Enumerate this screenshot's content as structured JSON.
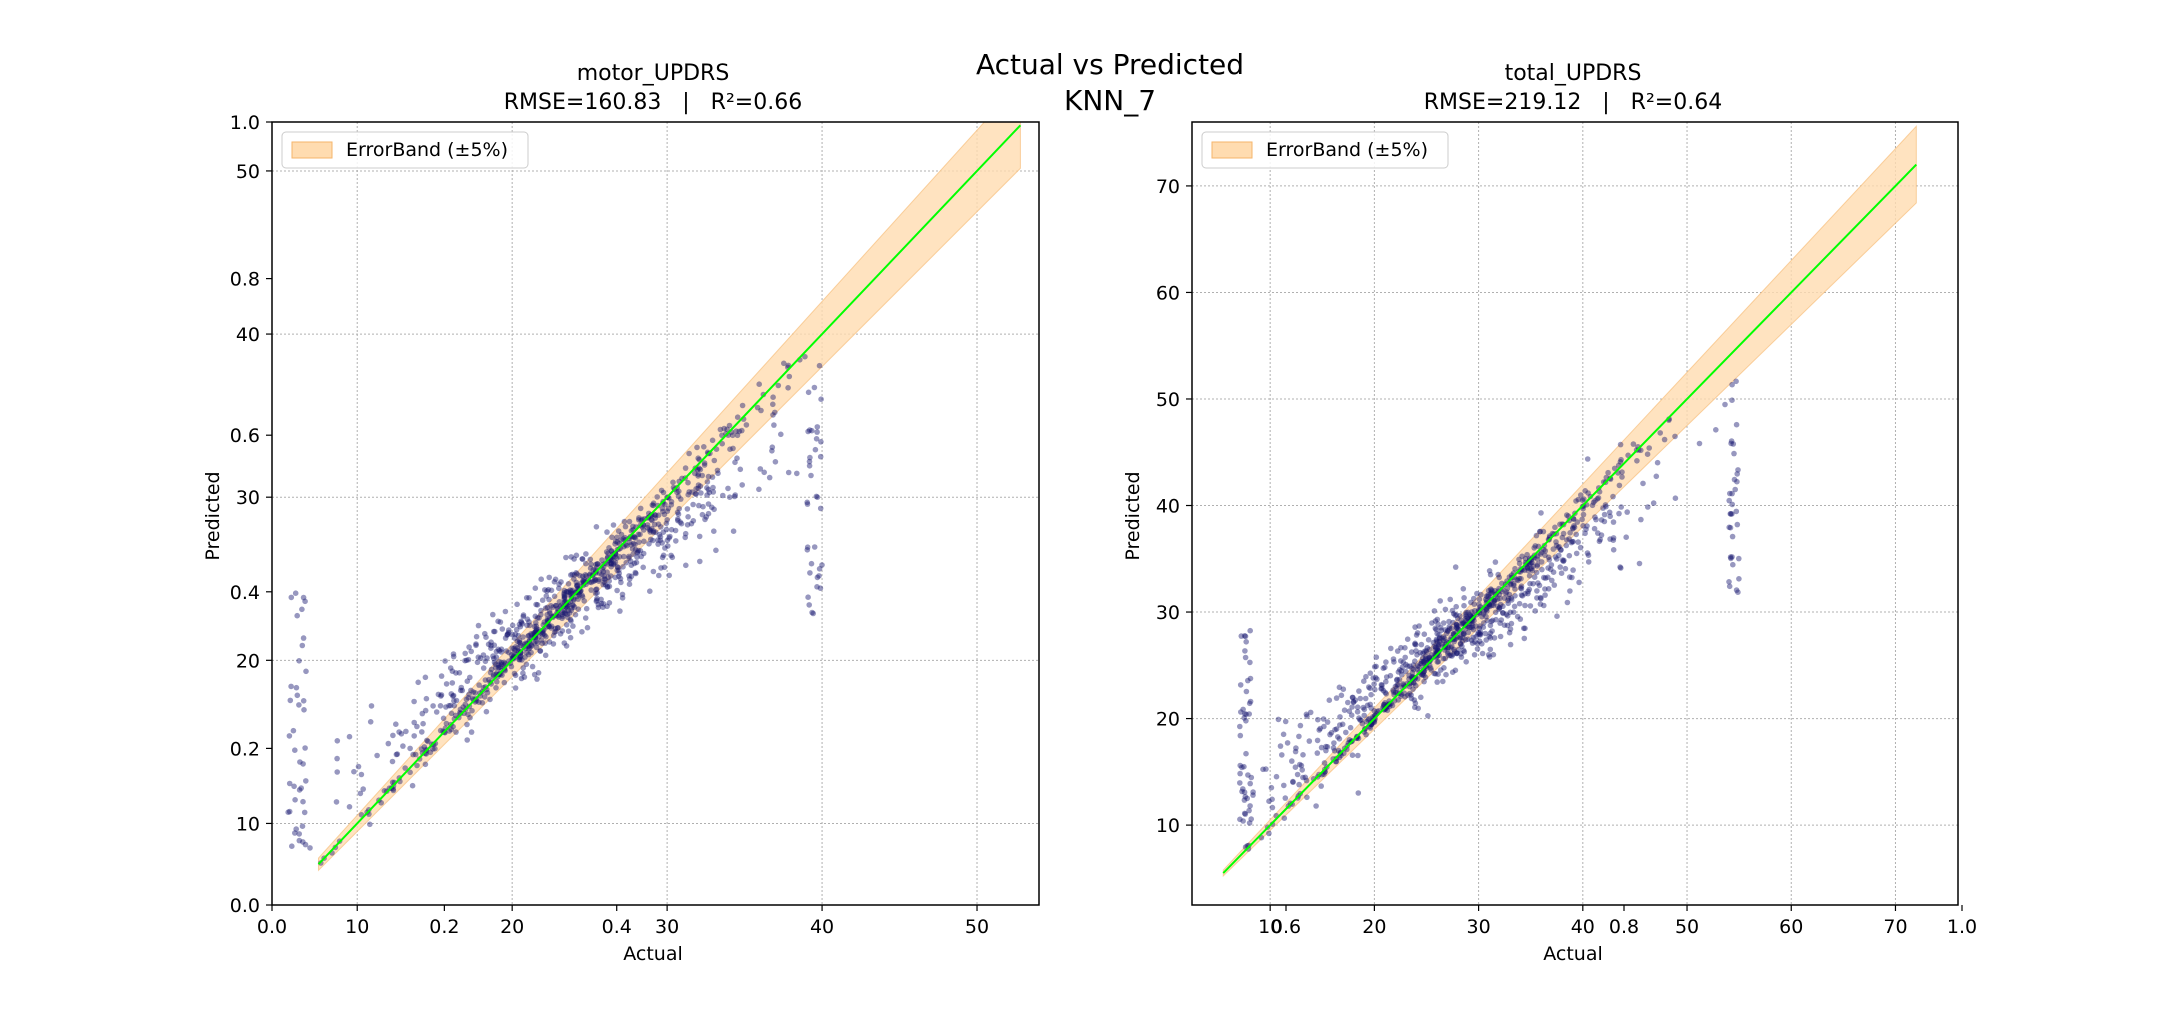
{
  "suptitle": {
    "line1": "Actual vs Predicted",
    "line2": "KNN_7"
  },
  "colors": {
    "scatter": "#191970",
    "ideal_line": "#00ff00",
    "band_fill": "#ffdcb0",
    "band_edge": "#f5b56a",
    "grid": "#b0b0b0"
  },
  "chart_data": [
    {
      "type": "scatter",
      "title": "motor_UPDRS",
      "subtitle": "RMSE=160.83   |   R²=0.66",
      "xlabel": "Actual",
      "ylabel": "Predicted",
      "xlim": [
        4.5,
        54
      ],
      "ylim": [
        5,
        53
      ],
      "xticks": [
        10,
        20,
        30,
        40,
        50
      ],
      "yticks": [
        10,
        20,
        30,
        40,
        50
      ],
      "overlay_xticks": [
        "0.0",
        "0.2",
        "0.4"
      ],
      "overlay_yticks": [
        "0.0",
        "0.2",
        "0.4",
        "0.6",
        "0.8",
        "1.0"
      ],
      "legend": "ErrorBand (±5%)",
      "ideal_line": {
        "x": [
          7.5,
          52.8
        ],
        "y": [
          7.5,
          52.8
        ]
      },
      "band_pct": 5,
      "point_count": 950,
      "x_range_data": [
        5.5,
        40
      ],
      "cluster_center": 23.5
    },
    {
      "type": "scatter",
      "title": "total_UPDRS",
      "subtitle": "RMSE=219.12   |   R²=0.64",
      "xlabel": "Actual",
      "ylabel": "Predicted",
      "xlim": [
        2.5,
        76
      ],
      "ylim": [
        2.5,
        76
      ],
      "xticks": [
        10,
        20,
        30,
        40,
        50,
        60,
        70
      ],
      "yticks": [
        10,
        20,
        30,
        40,
        50,
        60,
        70
      ],
      "overlay_xticks": [
        "0.6",
        "0.8",
        "1.0"
      ],
      "overlay_yticks": [],
      "legend": "ErrorBand (±5%)",
      "ideal_line": {
        "x": [
          5.5,
          72
        ],
        "y": [
          5.5,
          72
        ]
      },
      "band_pct": 5,
      "point_count": 950,
      "x_range_data": [
        7,
        55
      ],
      "cluster_center": 27.5
    }
  ]
}
